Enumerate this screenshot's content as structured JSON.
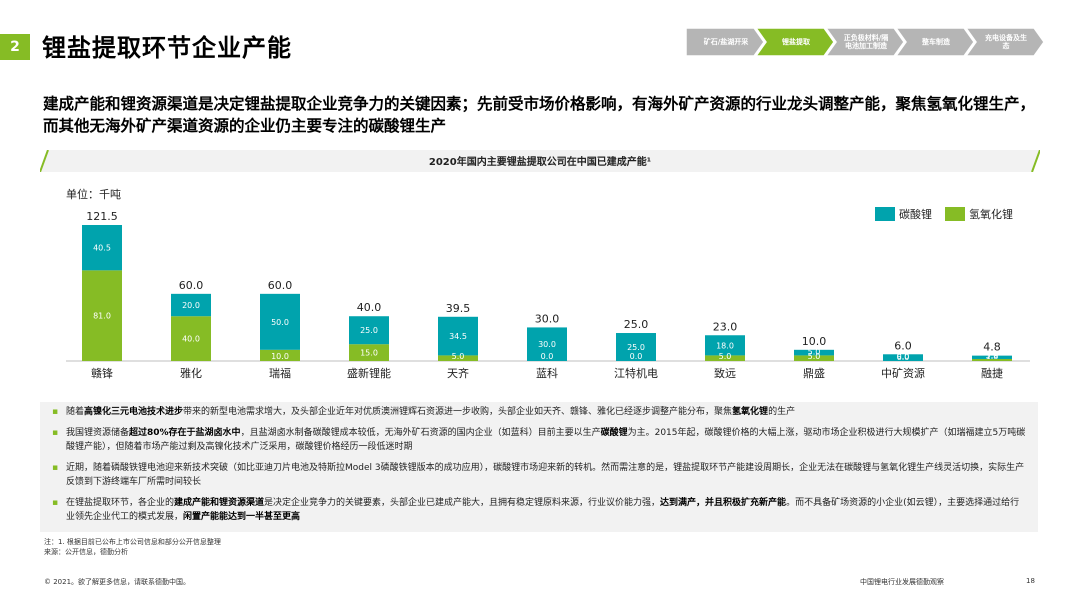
{
  "header": {
    "section_number": "2",
    "title": "锂盐提取环节企业产能",
    "steps": [
      {
        "label": "矿石/盐湖开采",
        "active": false
      },
      {
        "label": "锂盐提取",
        "active": true
      },
      {
        "label": "正负极材料/隔电池加工制造",
        "active": false
      },
      {
        "label": "整车制造",
        "active": false
      },
      {
        "label": "充电设备及生态",
        "active": false
      }
    ]
  },
  "subtitle": "建成产能和锂资源渠道是决定锂盐提取企业竞争力的关键因素；先前受市场价格影响，有海外矿产资源的行业龙头调整产能，聚焦氢氧化锂生产，而其他无海外矿产渠道资源的企业仍主要专注的碳酸锂生产",
  "chart_data": {
    "type": "bar",
    "stacked": true,
    "title": "2020年国内主要锂盐提取公司在中国已建成产能¹",
    "unit_label": "单位：千吨",
    "categories": [
      "赣锋",
      "雅化",
      "瑞福",
      "盛新锂能",
      "天齐",
      "蓝科",
      "江特机电",
      "致远",
      "鼎盛",
      "中矿资源",
      "融捷"
    ],
    "series": [
      {
        "name": "碳酸锂",
        "color": "#00a3ad",
        "values": [
          40.5,
          20.0,
          50.0,
          25.0,
          34.5,
          30.0,
          25.0,
          18.0,
          5.0,
          6.0,
          3.0
        ],
        "labels": [
          "40.5",
          "20.0",
          "50.0",
          "25.0",
          "34.5",
          "30.0",
          "25.0",
          "18.0",
          "5.0",
          "6.0",
          "3.0"
        ]
      },
      {
        "name": "氢氧化锂",
        "color": "#86bc25",
        "values": [
          81.0,
          40.0,
          10.0,
          15.0,
          5.0,
          0.0,
          0.0,
          5.0,
          5.0,
          0.0,
          1.8
        ],
        "labels": [
          "81.0",
          "40.0",
          "10.0",
          "15.0",
          "5.0",
          "0.0",
          "0.0",
          "5.0",
          "5.0",
          "0.0",
          "1.8"
        ]
      }
    ],
    "totals": [
      "121.5",
      "60.0",
      "60.0",
      "40.0",
      "39.5",
      "30.0",
      "25.0",
      "23.0",
      "10.0",
      "6.0",
      "4.8"
    ],
    "ylim": [
      0,
      121.5
    ],
    "grid": false,
    "legend_position": "top-right"
  },
  "bullets": [
    {
      "parts": [
        {
          "t": "随着"
        },
        {
          "t": "高镍化三元电池技术进步",
          "b": true
        },
        {
          "t": "带来的新型电池需求增大，及头部企业近年对优质澳洲锂辉石资源进一步收购，头部企业如天齐、赣锋、雅化已经逐步调整产能分布，聚焦"
        },
        {
          "t": "氢氧化锂",
          "b": true
        },
        {
          "t": "的生产"
        }
      ]
    },
    {
      "parts": [
        {
          "t": "我国锂资源储备"
        },
        {
          "t": "超过80%存在于盐湖卤水中",
          "b": true
        },
        {
          "t": "，且盐湖卤水制备碳酸锂成本较低，无海外矿石资源的国内企业（如蓝科）目前主要以生产"
        },
        {
          "t": "碳酸锂",
          "b": true
        },
        {
          "t": "为主。2015年起，碳酸锂价格的大幅上涨，驱动市场企业积极进行大规模扩产（如瑞福建立5万吨碳酸锂产能），但随着市场产能过剩及高镍化技术广泛采用，碳酸锂价格经历一段低迷时期"
        }
      ]
    },
    {
      "parts": [
        {
          "t": "近期，随着磷酸铁锂电池迎来新技术突破（如比亚迪刀片电池及特斯拉Model 3磷酸铁锂版本的成功应用），碳酸锂市场迎来新的转机。然而需注意的是，锂盐提取环节产能建设周期长，企业无法在碳酸锂与氢氧化锂生产线灵活切换，实际生产反馈到下游终端车厂所需时间较长"
        }
      ]
    },
    {
      "parts": [
        {
          "t": "在锂盐提取环节，各企业的"
        },
        {
          "t": "建成产能和锂资源渠道",
          "b": true
        },
        {
          "t": "是决定企业竞争力的关键要素，头部企业已建成产能大，且拥有稳定锂原料来源，行业议价能力强，"
        },
        {
          "t": "达到满产，并且积极扩充新产能",
          "b": true
        },
        {
          "t": "。而不具备矿场资源的小企业(如云锂），主要选择通过给行业领先企业代工的模式发展，"
        },
        {
          "t": "闲置产能能达到一半甚至更高",
          "b": true
        }
      ]
    }
  ],
  "notes": {
    "note": "注：1. 根据目前已公布上市公司信息和部分公开信息整理",
    "source": "来源：公开信息，德勤分析"
  },
  "footer": {
    "copyright": "© 2021。欲了解更多信息，请联系德勤中国。",
    "report_title": "中国锂电行业发展德勤观察",
    "page_number": "18"
  }
}
